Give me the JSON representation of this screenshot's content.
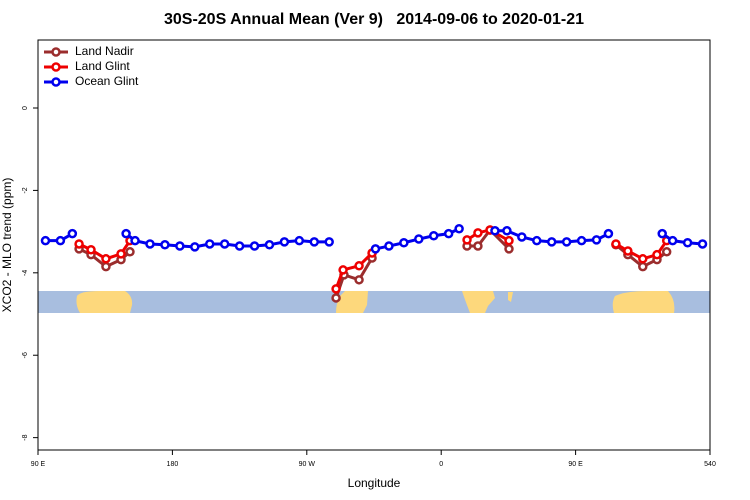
{
  "chart_data": {
    "type": "line",
    "title": "30S-20S Annual Mean (Ver 9)   2014-09-06 to 2020-01-21",
    "x_label": "Longitude",
    "y_label": "XCO2 - MLO trend (ppm)",
    "xlim": [
      90,
      540
    ],
    "ylim": [
      -8.3,
      1.65
    ],
    "xticks": [
      {
        "value": 90,
        "label": "90 E"
      },
      180,
      {
        "value": 270,
        "label": "90 W"
      },
      {
        "value": 360,
        "label": "0"
      },
      {
        "value": 450,
        "label": "90 E"
      },
      540
    ],
    "yticks": [
      0,
      -2,
      -4,
      -6,
      -8
    ],
    "legend_position": "top-left",
    "series": [
      {
        "name": "Land Nadir",
        "color": "#9b2d2d",
        "x": [
          117.5,
          125.5,
          135.5,
          145.6,
          151.6,
          220,
          289.6,
          294.9,
          305,
          313.7,
          340,
          377.3,
          384.6,
          392.7,
          405.4,
          440,
          477,
          485,
          495,
          504.5,
          511
        ],
        "values": [
          -3.42,
          -3.56,
          -3.85,
          -3.68,
          -3.49,
          null,
          -4.61,
          -4.05,
          -4.17,
          -3.64,
          null,
          -3.35,
          -3.35,
          -2.96,
          -3.42,
          null,
          -3.32,
          -3.56,
          -3.85,
          -3.68,
          -3.49
        ]
      },
      {
        "name": "Land Glint",
        "color": "#ee0000",
        "x": [
          117.5,
          125.5,
          135.5,
          145.6,
          151.6,
          220,
          289.6,
          294.3,
          305,
          313.7,
          340,
          377.3,
          384.6,
          392.7,
          405.4,
          440,
          477,
          485,
          495,
          504.5,
          511
        ],
        "values": [
          -3.3,
          -3.44,
          -3.66,
          -3.54,
          -3.22,
          null,
          -4.39,
          -3.93,
          -3.83,
          -3.52,
          null,
          -3.2,
          -3.03,
          -2.96,
          -3.22,
          null,
          -3.3,
          -3.47,
          -3.66,
          -3.56,
          -3.22
        ]
      },
      {
        "name": "Ocean Glint",
        "color": "#0000ee",
        "x": [
          95,
          105,
          113,
          130,
          149,
          155,
          165,
          175,
          185,
          195,
          205,
          215,
          225,
          235,
          245,
          255,
          265,
          275,
          285,
          300,
          316,
          325,
          335,
          345,
          355,
          365,
          372,
          384,
          396,
          404,
          414,
          424,
          434,
          444,
          454,
          464,
          472,
          490,
          508,
          515,
          525,
          535
        ],
        "values": [
          -3.22,
          -3.22,
          -3.05,
          null,
          -3.05,
          -3.22,
          -3.3,
          -3.32,
          -3.35,
          -3.37,
          -3.3,
          -3.3,
          -3.35,
          -3.35,
          -3.32,
          -3.25,
          -3.22,
          -3.25,
          -3.25,
          null,
          -3.42,
          -3.35,
          -3.27,
          -3.18,
          -3.1,
          -3.05,
          -2.93,
          null,
          -2.98,
          -2.98,
          -3.13,
          -3.22,
          -3.25,
          -3.25,
          -3.22,
          -3.2,
          -3.05,
          null,
          -3.05,
          -3.22,
          -3.27,
          -3.3
        ]
      }
    ]
  }
}
